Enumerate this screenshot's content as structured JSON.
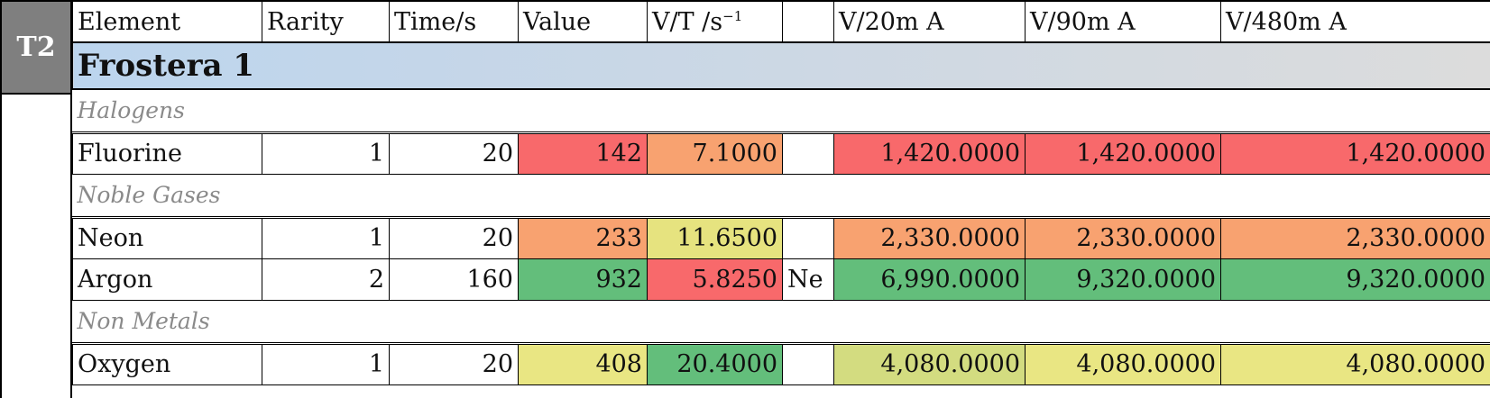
{
  "tier_label": "T2",
  "headers": [
    "Element",
    "Rarity",
    "Time/s",
    "Value",
    "V/T /s",
    "",
    "V/20m A",
    "V/90m A",
    "V/480m A"
  ],
  "vt_superscript": "−1",
  "planet": "Frostera 1",
  "groups": [
    {
      "name": "Halogens",
      "rows": [
        {
          "element": "Fluorine",
          "rarity": "1",
          "time": "20",
          "value": "142",
          "vt": "7.1000",
          "note": "",
          "v20": "1,420.0000",
          "v90": "1,420.0000",
          "v480": "1,420.0000"
        }
      ]
    },
    {
      "name": "Noble Gases",
      "rows": [
        {
          "element": "Neon",
          "rarity": "1",
          "time": "20",
          "value": "233",
          "vt": "11.6500",
          "note": "",
          "v20": "2,330.0000",
          "v90": "2,330.0000",
          "v480": "2,330.0000"
        },
        {
          "element": "Argon",
          "rarity": "2",
          "time": "160",
          "value": "932",
          "vt": "5.8250",
          "note": "Ne",
          "v20": "6,990.0000",
          "v90": "9,320.0000",
          "v480": "9,320.0000"
        }
      ]
    },
    {
      "name": "Non Metals",
      "rows": [
        {
          "element": "Oxygen",
          "rarity": "1",
          "time": "20",
          "value": "408",
          "vt": "20.4000",
          "note": "",
          "v20": "4,080.0000",
          "v90": "4,080.0000",
          "v480": "4,080.0000"
        }
      ]
    }
  ],
  "colors": {
    "red": "#f8696b",
    "orange": "#f8a270",
    "yellow": "#e6e37f",
    "green": "#63be7b",
    "light_green": "#d3dc80",
    "title_gradient_start": "#bcd5ee",
    "title_gradient_end": "#dcdcdc",
    "tier_bg": "#7f7f7f"
  }
}
